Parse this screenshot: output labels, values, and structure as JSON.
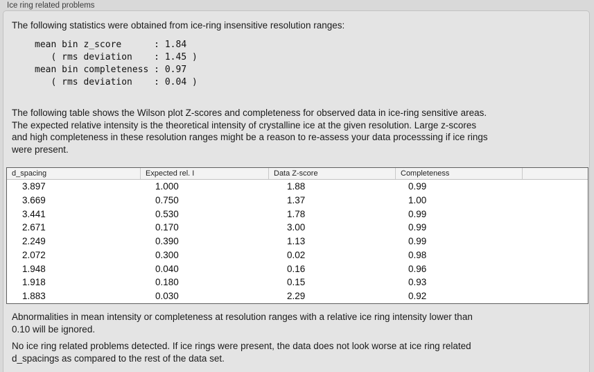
{
  "panel": {
    "title": "Ice ring related problems"
  },
  "intro_text": "The following statistics were obtained from ice-ring insensitive resolution ranges:",
  "stats_block": "mean bin z_score      : 1.84\n   ( rms deviation    : 1.45 )\nmean bin completeness : 0.97\n   ( rms deviation    : 0.04 )",
  "stats": {
    "mean_bin_z_score": "1.84",
    "z_score_rms_deviation": "1.45",
    "mean_bin_completeness": "0.97",
    "completeness_rms_deviation": "0.04"
  },
  "table_intro": "The following table shows the Wilson plot Z-scores and completeness for observed data in ice-ring sensitive areas.\nThe expected relative intensity is the theoretical intensity of crystalline ice at the given resolution. Large z-scores\nand high completeness in these resolution ranges might be a reason to re-assess your data processsing if ice rings\nwere present.",
  "table": {
    "columns": [
      "d_spacing",
      "Expected rel. I",
      "Data Z-score",
      "Completeness",
      ""
    ],
    "rows": [
      [
        "3.897",
        "1.000",
        "1.88",
        "0.99"
      ],
      [
        "3.669",
        "0.750",
        "1.37",
        "1.00"
      ],
      [
        "3.441",
        "0.530",
        "1.78",
        "0.99"
      ],
      [
        "2.671",
        "0.170",
        "3.00",
        "0.99"
      ],
      [
        "2.249",
        "0.390",
        "1.13",
        "0.99"
      ],
      [
        "2.072",
        "0.300",
        "0.02",
        "0.98"
      ],
      [
        "1.948",
        "0.040",
        "0.16",
        "0.96"
      ],
      [
        "1.918",
        "0.180",
        "0.15",
        "0.93"
      ],
      [
        "1.883",
        "0.030",
        "2.29",
        "0.92"
      ]
    ]
  },
  "note_ignore": "Abnormalities in mean intensity or completeness at resolution ranges with a relative ice ring intensity lower than\n0.10 will be ignored.",
  "note_conclusion": "No ice ring related problems detected. If ice rings were present, the data does not look worse at ice ring related\nd_spacings as compared to the rest of the data set."
}
